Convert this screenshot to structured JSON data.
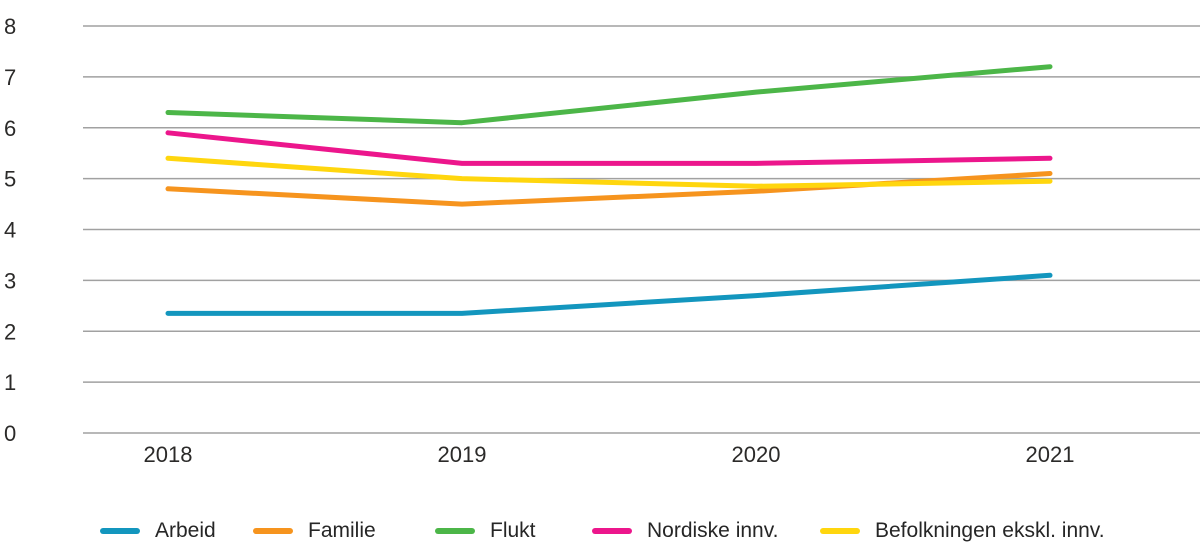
{
  "chart_data": {
    "type": "line",
    "title": "",
    "xlabel": "",
    "ylabel": "",
    "categories": [
      "2018",
      "2019",
      "2020",
      "2021"
    ],
    "series": [
      {
        "name": "Arbeid",
        "color": "#1396BE",
        "values": [
          2.35,
          2.35,
          2.7,
          3.1
        ]
      },
      {
        "name": "Familie",
        "color": "#F6941E",
        "values": [
          4.8,
          4.5,
          4.75,
          5.1
        ]
      },
      {
        "name": "Flukt",
        "color": "#4CB648",
        "values": [
          6.3,
          6.1,
          6.7,
          7.2
        ]
      },
      {
        "name": "Nordiske innv.",
        "color": "#EC168C",
        "values": [
          5.9,
          5.3,
          5.3,
          5.4
        ]
      },
      {
        "name": "Befolkningen ekskl. innv.",
        "color": "#FFD60E",
        "values": [
          5.4,
          5.0,
          4.85,
          4.95
        ]
      }
    ],
    "ylim": [
      0,
      8
    ],
    "yticks": [
      0,
      1,
      2,
      3,
      4,
      5,
      6,
      7,
      8
    ],
    "grid": "horizontal",
    "legend_position": "bottom"
  },
  "colors": {
    "gridline": "#A1A1A1",
    "tick_text": "#2B2A29",
    "legend_text": "#262626"
  }
}
